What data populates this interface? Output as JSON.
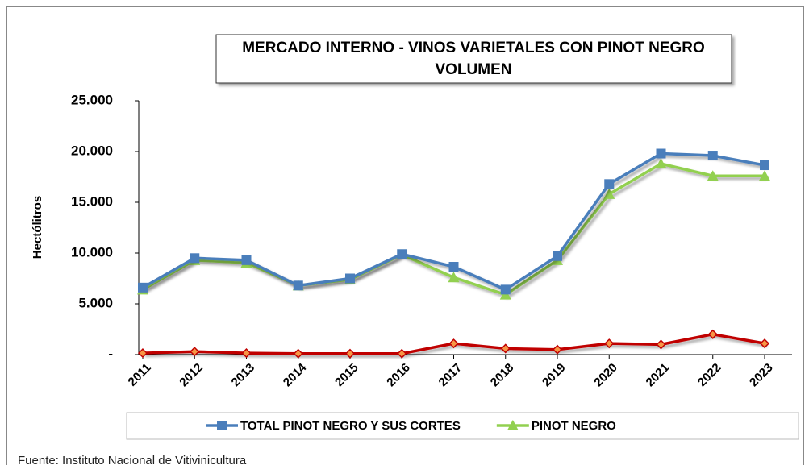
{
  "chart_data": {
    "type": "line",
    "title": [
      "MERCADO INTERNO - VINOS VARIETALES CON PINOT NEGRO",
      "VOLUMEN"
    ],
    "ylabel": "Hectólitros",
    "source": "Fuente: Instituto Nacional de Vitivinicultura",
    "categories": [
      "2011",
      "2012",
      "2013",
      "2014",
      "2015",
      "2016",
      "2017",
      "2018",
      "2019",
      "2020",
      "2021",
      "2022",
      "2023"
    ],
    "series": [
      {
        "name": "TOTAL PINOT NEGRO Y SUS CORTES",
        "color": "#4a7ebb",
        "marker": "square",
        "values": [
          6600,
          9500,
          9300,
          6800,
          7500,
          9900,
          8650,
          6400,
          9700,
          16800,
          19800,
          19600,
          18650
        ]
      },
      {
        "name": "PINOT NEGRO",
        "color": "#92d050",
        "marker": "triangle",
        "values": [
          6400,
          9300,
          9050,
          6800,
          7400,
          9850,
          7600,
          5900,
          9300,
          15800,
          18800,
          17600,
          17600
        ]
      },
      {
        "color": "#c00000",
        "marker": "diamond",
        "values": [
          150,
          300,
          150,
          100,
          100,
          100,
          1100,
          600,
          500,
          1100,
          1000,
          2000,
          1100
        ]
      }
    ],
    "ylim": [
      0,
      25000
    ],
    "yticks": [
      {
        "value": 0,
        "label": "-"
      },
      {
        "value": 5000,
        "label": "5.000"
      },
      {
        "value": 10000,
        "label": "10.000"
      },
      {
        "value": 15000,
        "label": "15.000"
      },
      {
        "value": 20000,
        "label": "20.000"
      },
      {
        "value": 25000,
        "label": "25.000"
      }
    ],
    "grid": false
  }
}
